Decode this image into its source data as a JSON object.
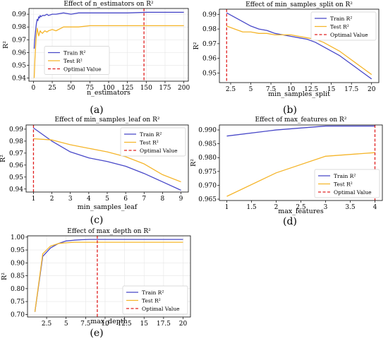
{
  "colors": {
    "train": "#4848c8",
    "test": "#f5b52a",
    "optimal": "#e02020"
  },
  "panels": [
    {
      "label": "(a)",
      "chart_data": {
        "type": "line",
        "title": "Effect of n_estimators on R²",
        "xlabel": "n_estimators",
        "ylabel": "R²",
        "xlim": [
          -6,
          206
        ],
        "ylim": [
          0.9375,
          0.9945
        ],
        "xticks": [
          0,
          25,
          50,
          75,
          100,
          125,
          150,
          175,
          200
        ],
        "yticks": [
          0.94,
          0.95,
          0.96,
          0.97,
          0.98,
          0.99
        ],
        "ytick_labels": [
          "0.94",
          "0.95",
          "0.96",
          "0.97",
          "0.98",
          "0.99"
        ],
        "grid": true,
        "legend_position": "center-left",
        "series": [
          {
            "name": "Train R²",
            "color_key": "train",
            "x": [
              1,
              2,
              3,
              4,
              5,
              6,
              7,
              8,
              9,
              10,
              12,
              15,
              18,
              20,
              25,
              30,
              40,
              50,
              60,
              75,
              100,
              125,
              150,
              175,
              200
            ],
            "y": [
              0.963,
              0.972,
              0.978,
              0.983,
              0.986,
              0.985,
              0.988,
              0.987,
              0.989,
              0.988,
              0.989,
              0.989,
              0.99,
              0.989,
              0.99,
              0.99,
              0.991,
              0.99,
              0.991,
              0.991,
              0.991,
              0.991,
              0.9915,
              0.9915,
              0.9915
            ]
          },
          {
            "name": "Test R²",
            "color_key": "test",
            "x": [
              1,
              2,
              3,
              4,
              5,
              6,
              7,
              8,
              9,
              10,
              12,
              15,
              18,
              20,
              25,
              30,
              40,
              50,
              60,
              75,
              100,
              125,
              150,
              175,
              200
            ],
            "y": [
              0.94,
              0.955,
              0.966,
              0.974,
              0.979,
              0.976,
              0.973,
              0.975,
              0.977,
              0.976,
              0.975,
              0.977,
              0.976,
              0.977,
              0.978,
              0.977,
              0.98,
              0.98,
              0.98,
              0.981,
              0.981,
              0.981,
              0.981,
              0.981,
              0.981
            ]
          }
        ],
        "optimal_value": {
          "name": "Optimal Value",
          "x": 147
        }
      }
    },
    {
      "label": "(b)",
      "chart_data": {
        "type": "line",
        "title": "Effect of min_samples_split on R²",
        "xlabel": "min_samples_split",
        "ylabel": "R²",
        "xlim": [
          1.1,
          20.9
        ],
        "ylim": [
          0.9435,
          0.9935
        ],
        "xticks": [
          2.5,
          5.0,
          7.5,
          10.0,
          12.5,
          15.0,
          17.5,
          20.0
        ],
        "yticks": [
          0.95,
          0.96,
          0.97,
          0.98,
          0.99
        ],
        "ytick_labels": [
          "0.95",
          "0.96",
          "0.97",
          "0.98",
          "0.99"
        ],
        "grid": false,
        "legend_position": "upper-right",
        "series": [
          {
            "name": "Train R²",
            "color_key": "train",
            "x": [
              2,
              3,
              4,
              5,
              6,
              7,
              8,
              9,
              10,
              11,
              12,
              13,
              14,
              15,
              16,
              17,
              18,
              19,
              20
            ],
            "y": [
              0.991,
              0.988,
              0.985,
              0.982,
              0.98,
              0.979,
              0.977,
              0.976,
              0.975,
              0.974,
              0.973,
              0.971,
              0.968,
              0.965,
              0.962,
              0.958,
              0.954,
              0.95,
              0.946
            ]
          },
          {
            "name": "Test R²",
            "color_key": "test",
            "x": [
              2,
              3,
              4,
              5,
              6,
              7,
              8,
              9,
              10,
              11,
              12,
              13,
              14,
              15,
              16,
              17,
              18,
              19,
              20
            ],
            "y": [
              0.982,
              0.98,
              0.978,
              0.978,
              0.977,
              0.977,
              0.976,
              0.976,
              0.976,
              0.975,
              0.974,
              0.973,
              0.971,
              0.968,
              0.965,
              0.961,
              0.957,
              0.953,
              0.949
            ]
          }
        ],
        "optimal_value": {
          "name": "Optimal Value",
          "x": 2
        }
      }
    },
    {
      "label": "(c)",
      "chart_data": {
        "type": "line",
        "title": "Effect of min_samples_leaf on R²",
        "xlabel": "min_samples_leaf",
        "ylabel": "R²",
        "xlim": [
          0.6,
          9.4
        ],
        "ylim": [
          0.9375,
          0.9935
        ],
        "xticks": [
          1,
          2,
          3,
          4,
          5,
          6,
          7,
          8,
          9
        ],
        "yticks": [
          0.94,
          0.95,
          0.96,
          0.97,
          0.98,
          0.99
        ],
        "ytick_labels": [
          "0.94",
          "0.95",
          "0.96",
          "0.97",
          "0.98",
          "0.99"
        ],
        "grid": false,
        "legend_position": "upper-right",
        "series": [
          {
            "name": "Train R²",
            "color_key": "train",
            "x": [
              1,
              2,
              3,
              4,
              5,
              6,
              7,
              8,
              9
            ],
            "y": [
              0.991,
              0.98,
              0.971,
              0.966,
              0.963,
              0.959,
              0.953,
              0.946,
              0.939
            ]
          },
          {
            "name": "Test R²",
            "color_key": "test",
            "x": [
              1,
              2,
              3,
              4,
              5,
              6,
              7,
              8,
              9
            ],
            "y": [
              0.982,
              0.981,
              0.977,
              0.974,
              0.971,
              0.967,
              0.961,
              0.952,
              0.946
            ]
          }
        ],
        "optimal_value": {
          "name": "Optimal Value",
          "x": 1
        }
      }
    },
    {
      "label": "(d)",
      "chart_data": {
        "type": "line",
        "title": "Effect of max_features on R²",
        "xlabel": "max_features",
        "ylabel": "R²",
        "xlim": [
          0.85,
          4.15
        ],
        "ylim": [
          0.9645,
          0.9918
        ],
        "xticks": [
          1.0,
          1.5,
          2.0,
          2.5,
          3.0,
          3.5,
          4.0
        ],
        "yticks": [
          0.965,
          0.97,
          0.975,
          0.98,
          0.985,
          0.99
        ],
        "ytick_labels": [
          "0.965",
          "0.970",
          "0.975",
          "0.980",
          "0.985",
          "0.990"
        ],
        "grid": false,
        "legend_position": "lower-right",
        "series": [
          {
            "name": "Train R²",
            "color_key": "train",
            "x": [
              1,
              2,
              3,
              4
            ],
            "y": [
              0.9878,
              0.99,
              0.9914,
              0.9914
            ]
          },
          {
            "name": "Test R²",
            "color_key": "test",
            "x": [
              1,
              2,
              3,
              4
            ],
            "y": [
              0.966,
              0.9745,
              0.9805,
              0.9818
            ]
          }
        ],
        "optimal_value": {
          "name": "Optimal Value",
          "x": 4
        }
      }
    },
    {
      "label": "(e)",
      "chart_data": {
        "type": "line",
        "title": "Effect of max_depth on R²",
        "xlabel": "max_depth",
        "ylabel": "R²",
        "xlim": [
          0.05,
          20.95
        ],
        "ylim": [
          0.69,
          1.005
        ],
        "xticks": [
          2.5,
          5.0,
          7.5,
          10.0,
          12.5,
          15.0,
          17.5,
          20.0
        ],
        "yticks": [
          0.7,
          0.75,
          0.8,
          0.85,
          0.9,
          0.95,
          1.0
        ],
        "ytick_labels": [
          "0.70",
          "0.75",
          "0.80",
          "0.85",
          "0.90",
          "0.95",
          "1.00"
        ],
        "grid": true,
        "legend_position": "lower-right",
        "series": [
          {
            "name": "Train R²",
            "color_key": "train",
            "x": [
              1,
              2,
              3,
              4,
              5,
              6,
              7,
              8,
              9,
              10,
              12,
              15,
              18,
              20
            ],
            "y": [
              0.71,
              0.925,
              0.958,
              0.975,
              0.985,
              0.988,
              0.99,
              0.991,
              0.991,
              0.991,
              0.991,
              0.991,
              0.991,
              0.991
            ]
          },
          {
            "name": "Test R²",
            "color_key": "test",
            "x": [
              1,
              2,
              3,
              4,
              5,
              6,
              7,
              8,
              9,
              10,
              12,
              15,
              18,
              20
            ],
            "y": [
              0.71,
              0.935,
              0.965,
              0.975,
              0.978,
              0.98,
              0.98,
              0.98,
              0.98,
              0.98,
              0.98,
              0.98,
              0.98,
              0.98
            ]
          }
        ],
        "optimal_value": {
          "name": "Optimal Value",
          "x": 9
        }
      }
    }
  ]
}
